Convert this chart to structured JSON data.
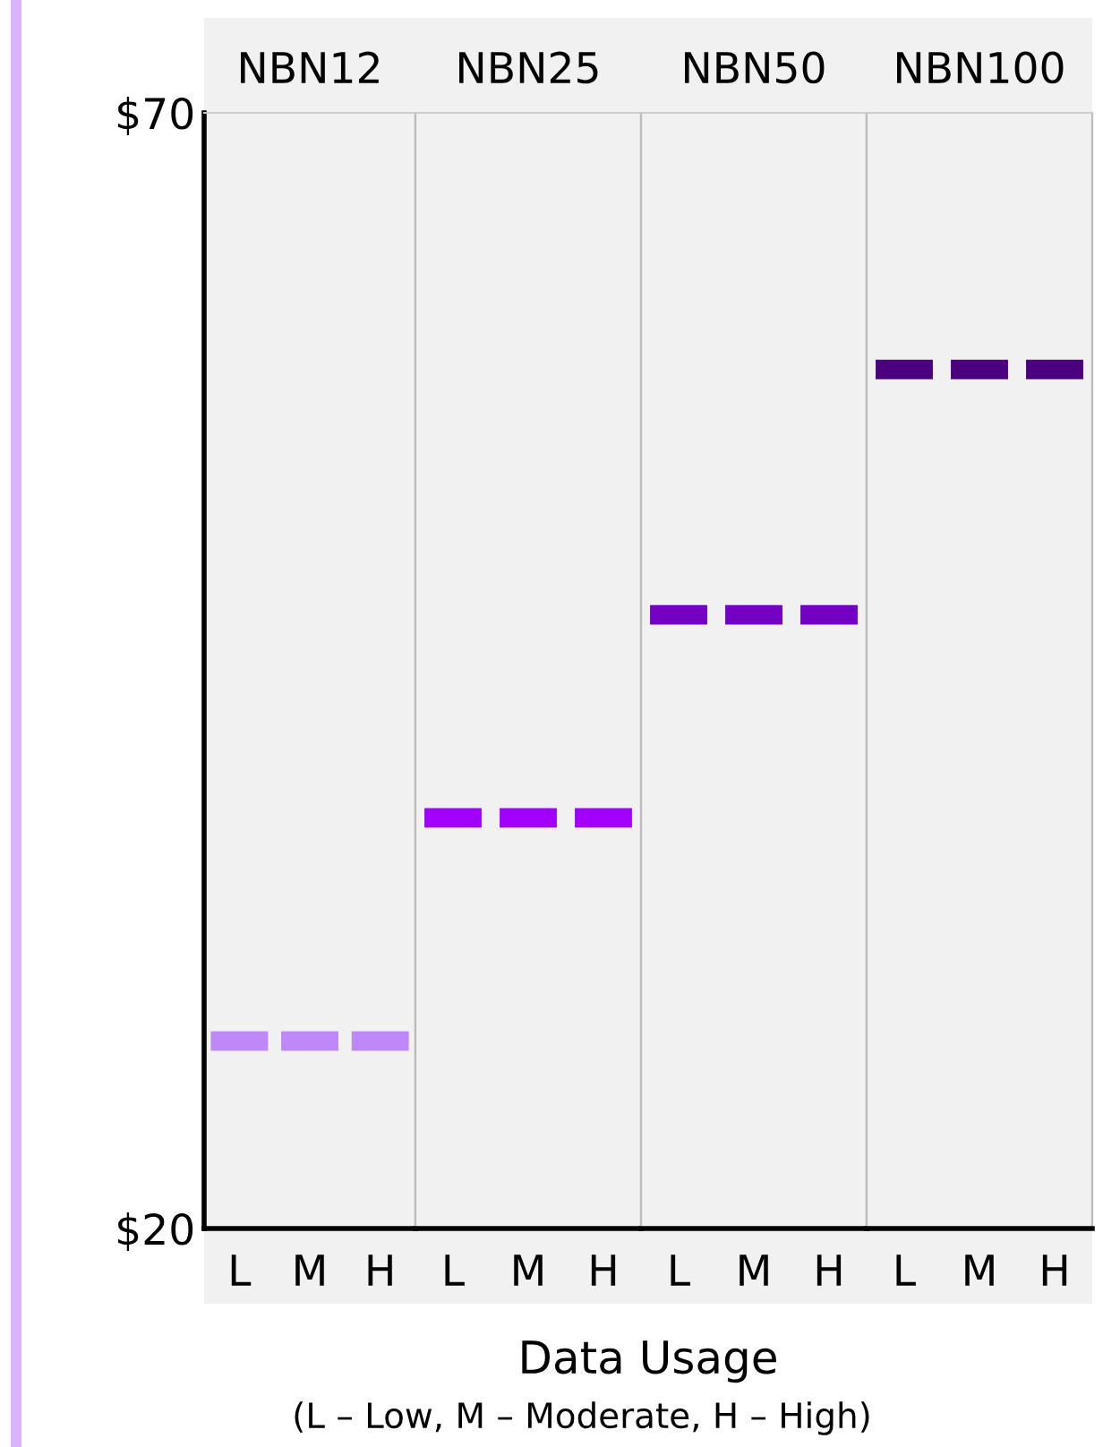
{
  "chart_data": [
    {
      "type": "scatter",
      "title": "NBN12",
      "categories": [
        "L",
        "M",
        "H"
      ],
      "series": [
        {
          "color": "#bf88f8",
          "values": [
            28.4,
            28.4,
            28.4
          ]
        }
      ],
      "ylim": [
        20,
        70
      ],
      "yticks": [
        {
          "value": 20,
          "label": "$20"
        },
        {
          "value": 70,
          "label": "$70"
        }
      ],
      "xlabel": "Data Usage",
      "annotations": [
        "(L – Low, M – Moderate, H – High)"
      ]
    },
    {
      "type": "scatter",
      "title": "NBN25",
      "categories": [
        "L",
        "M",
        "H"
      ],
      "series": [
        {
          "color": "#a100ff",
          "values": [
            38.4,
            38.4,
            38.4
          ]
        }
      ],
      "ylim": [
        20,
        70
      ],
      "tick_labels": "x"
    },
    {
      "type": "scatter",
      "title": "NBN50",
      "categories": [
        "L",
        "M",
        "H"
      ],
      "series": [
        {
          "color": "#7400c4",
          "values": [
            47.5,
            47.5,
            47.5
          ]
        }
      ],
      "ylim": [
        20,
        70
      ],
      "tick_labels": "x"
    },
    {
      "type": "scatter",
      "title": "NBN100",
      "categories": [
        "L",
        "M",
        "H"
      ],
      "series": [
        {
          "color": "#4a007f",
          "values": [
            58.5,
            58.5,
            58.5
          ]
        }
      ],
      "ylim": [
        20,
        70
      ],
      "tick_labels": "x"
    }
  ]
}
